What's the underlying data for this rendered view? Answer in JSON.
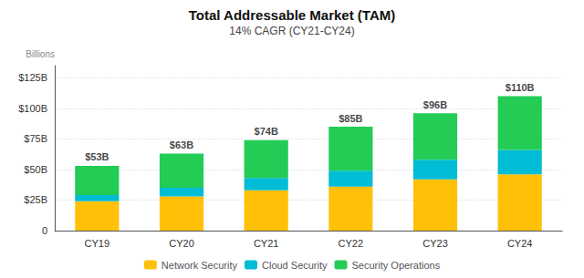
{
  "chart_data": {
    "type": "bar",
    "stacked": true,
    "title": "Total Addressable Market (TAM)",
    "subtitle": "14% CAGR (CY21-CY24)",
    "ylabel": "Billions",
    "categories": [
      "CY19",
      "CY20",
      "CY21",
      "CY22",
      "CY23",
      "CY24"
    ],
    "series": [
      {
        "name": "Network Security",
        "color": "#FFC107",
        "values": [
          24,
          28,
          33,
          36,
          42,
          46
        ]
      },
      {
        "name": "Cloud Security",
        "color": "#00BCD4",
        "values": [
          5,
          7,
          10,
          13,
          16,
          20
        ]
      },
      {
        "name": "Security Operations",
        "color": "#22CC55",
        "values": [
          24,
          28,
          31,
          36,
          38,
          44
        ]
      }
    ],
    "totals": [
      53,
      63,
      74,
      85,
      96,
      110
    ],
    "total_labels": [
      "$53B",
      "$63B",
      "$74B",
      "$85B",
      "$96B",
      "$110B"
    ],
    "ylim": [
      0,
      135
    ],
    "yticks": [
      0,
      {
        "value": 25,
        "label": "$25B"
      },
      {
        "value": 50,
        "label": "$50B"
      },
      {
        "value": 75,
        "label": "$75B"
      },
      {
        "value": 100,
        "label": "$100B"
      },
      {
        "value": 125,
        "label": "$125B"
      }
    ],
    "grid": true,
    "legend": "bottom"
  }
}
